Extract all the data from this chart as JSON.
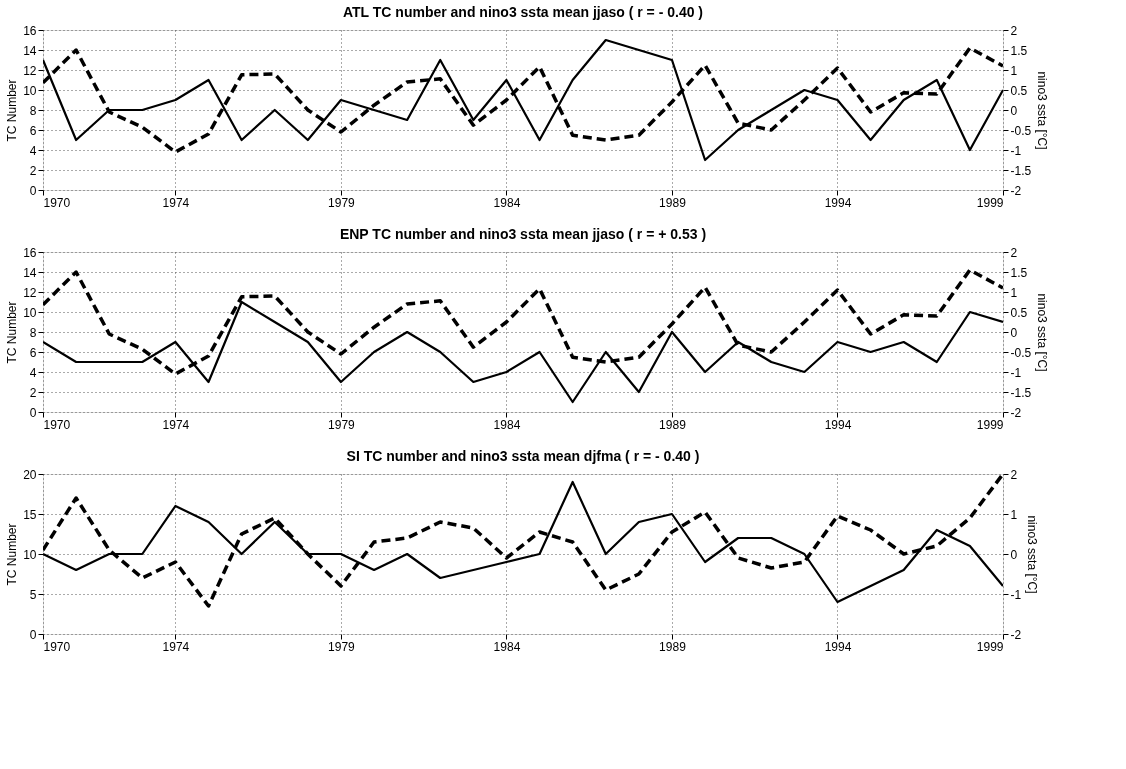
{
  "chart_data": [
    {
      "type": "line",
      "title": "ATL TC  number and nino3 ssta mean jjaso ( r = - 0.40 )",
      "ylabel": "TC Number",
      "y2label": "nino3 ssta [°C]",
      "x": [
        1970,
        1971,
        1972,
        1973,
        1974,
        1975,
        1976,
        1977,
        1978,
        1979,
        1980,
        1981,
        1982,
        1983,
        1984,
        1985,
        1986,
        1987,
        1988,
        1989,
        1990,
        1991,
        1992,
        1993,
        1994,
        1995,
        1996,
        1997,
        1998,
        1999
      ],
      "xlim": [
        1970,
        1999
      ],
      "xticks": [
        1970,
        1974,
        1979,
        1984,
        1989,
        1994,
        1999
      ],
      "ylim": [
        0,
        16
      ],
      "yticks": [
        0,
        2,
        4,
        6,
        8,
        10,
        12,
        14,
        16
      ],
      "y2lim": [
        -2,
        2
      ],
      "y2ticks": [
        -2,
        -1.5,
        -1,
        -0.5,
        0,
        0.5,
        1,
        1.5,
        2
      ],
      "grid": true,
      "series": [
        {
          "color": "#000000",
          "line_style": "solid",
          "values": [
            13,
            5,
            8,
            8,
            9,
            11,
            5,
            8,
            5,
            9,
            8,
            7,
            13,
            7,
            11,
            5,
            11,
            15,
            14,
            13,
            3,
            6,
            8,
            10,
            9,
            5,
            9,
            11,
            4,
            10
          ]
        },
        {
          "color": "#000000",
          "line_style": "dashed",
          "axis": "y2",
          "values": [
            0.68,
            1.5,
            -0.05,
            -0.43,
            -1.05,
            -0.6,
            0.88,
            0.9,
            0,
            -0.55,
            0.12,
            0.7,
            0.78,
            -0.38,
            0.25,
            1.08,
            -0.63,
            -0.75,
            -0.63,
            0.2,
            1.12,
            -0.33,
            -0.5,
            0.25,
            1.05,
            -0.05,
            0.43,
            0.4,
            1.55,
            1.1
          ]
        }
      ]
    },
    {
      "type": "line",
      "title": "ENP TC  number and nino3 ssta mean jjaso ( r = + 0.53 )",
      "ylabel": "TC Number",
      "y2label": "nino3 ssta [°C]",
      "x": [
        1970,
        1971,
        1972,
        1973,
        1974,
        1975,
        1976,
        1977,
        1978,
        1979,
        1980,
        1981,
        1982,
        1983,
        1984,
        1985,
        1986,
        1987,
        1988,
        1989,
        1990,
        1991,
        1992,
        1993,
        1994,
        1995,
        1996,
        1997,
        1998,
        1999
      ],
      "xlim": [
        1970,
        1999
      ],
      "xticks": [
        1970,
        1974,
        1979,
        1984,
        1989,
        1994,
        1999
      ],
      "ylim": [
        0,
        16
      ],
      "yticks": [
        0,
        2,
        4,
        6,
        8,
        10,
        12,
        14,
        16
      ],
      "y2lim": [
        -2,
        2
      ],
      "y2ticks": [
        -2,
        -1.5,
        -1,
        -0.5,
        0,
        0.5,
        1,
        1.5,
        2
      ],
      "grid": true,
      "series": [
        {
          "color": "#000000",
          "line_style": "solid",
          "values": [
            7,
            5,
            5,
            5,
            7,
            3,
            11,
            9,
            7,
            3,
            6,
            8,
            6,
            3,
            4,
            6,
            1,
            6,
            2,
            8,
            4,
            7,
            5,
            4,
            7,
            6,
            7,
            5,
            10,
            9
          ]
        },
        {
          "color": "#000000",
          "line_style": "dashed",
          "axis": "y2",
          "values": [
            0.68,
            1.5,
            -0.05,
            -0.43,
            -1.05,
            -0.6,
            0.88,
            0.9,
            0,
            -0.55,
            0.12,
            0.7,
            0.78,
            -0.38,
            0.25,
            1.08,
            -0.63,
            -0.75,
            -0.63,
            0.2,
            1.12,
            -0.33,
            -0.5,
            0.25,
            1.05,
            -0.05,
            0.43,
            0.4,
            1.55,
            1.1
          ]
        }
      ]
    },
    {
      "type": "line",
      "title": "SI TC  number and nino3 ssta mean djfma ( r = - 0.40 )",
      "ylabel": "TC Number",
      "y2label": "nino3 ssta [°C]",
      "x": [
        1970,
        1971,
        1972,
        1973,
        1974,
        1975,
        1976,
        1977,
        1978,
        1979,
        1980,
        1981,
        1982,
        1983,
        1984,
        1985,
        1986,
        1987,
        1988,
        1989,
        1990,
        1991,
        1992,
        1993,
        1994,
        1995,
        1996,
        1997,
        1998,
        1999
      ],
      "xlim": [
        1970,
        1999
      ],
      "xticks": [
        1970,
        1974,
        1979,
        1984,
        1989,
        1994,
        1999
      ],
      "ylim": [
        0,
        20
      ],
      "yticks": [
        0,
        5,
        10,
        15,
        20
      ],
      "y2lim": [
        -2,
        2
      ],
      "y2ticks": [
        -2,
        -1,
        0,
        1,
        2
      ],
      "grid": true,
      "series": [
        {
          "color": "#000000",
          "line_style": "solid",
          "values": [
            10,
            8,
            10,
            10,
            16,
            14,
            10,
            14,
            10,
            10,
            8,
            10,
            7,
            8,
            9,
            10,
            19,
            10,
            14,
            15,
            9,
            12,
            12,
            10,
            4,
            6,
            8,
            13,
            11,
            6
          ]
        },
        {
          "color": "#000000",
          "line_style": "dashed",
          "axis": "y2",
          "values": [
            0.1,
            1.4,
            0.1,
            -0.6,
            -0.2,
            -1.3,
            0.5,
            0.9,
            0,
            -0.8,
            0.3,
            0.4,
            0.8,
            0.65,
            -0.1,
            0.55,
            0.3,
            -0.9,
            -0.5,
            0.55,
            1.05,
            -0.1,
            -0.35,
            -0.2,
            0.95,
            0.6,
            0,
            0.2,
            0.9,
            2
          ]
        }
      ]
    }
  ]
}
